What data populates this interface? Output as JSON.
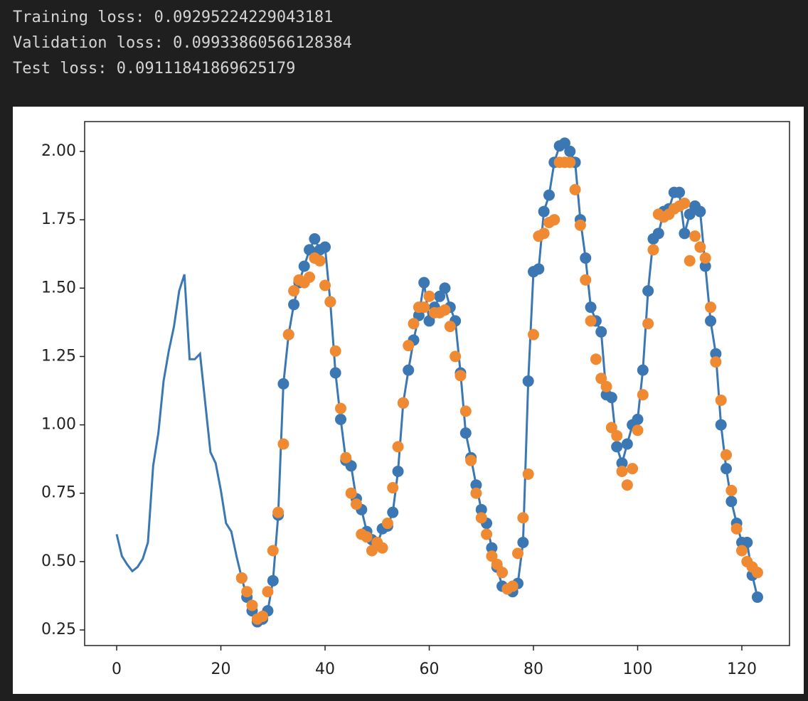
{
  "output_lines": [
    "Training loss: 0.09295224229043181",
    "Validation loss: 0.09933860566128384",
    "Test loss: 0.09111841869625179"
  ],
  "chart_data": {
    "type": "line",
    "x": [
      0,
      1,
      2,
      3,
      4,
      5,
      6,
      7,
      8,
      9,
      10,
      11,
      12,
      13,
      14,
      15,
      16,
      17,
      18,
      19,
      20,
      21,
      22,
      23,
      24,
      25,
      26,
      27,
      28,
      29,
      30,
      31,
      32,
      33,
      34,
      35,
      36,
      37,
      38,
      39,
      40,
      41,
      42,
      43,
      44,
      45,
      46,
      47,
      48,
      49,
      50,
      51,
      52,
      53,
      54,
      55,
      56,
      57,
      58,
      59,
      60,
      61,
      62,
      63,
      64,
      65,
      66,
      67,
      68,
      69,
      70,
      71,
      72,
      73,
      74,
      75,
      76,
      77,
      78,
      79,
      80,
      81,
      82,
      83,
      84,
      85,
      86,
      87,
      88,
      89,
      90,
      91,
      92,
      93,
      94,
      95,
      96,
      97,
      98,
      99,
      100,
      101,
      102,
      103,
      104,
      105,
      106,
      107,
      108,
      109,
      110,
      111,
      112,
      113,
      114,
      115,
      116,
      117,
      118,
      119,
      120,
      121,
      122,
      123
    ],
    "series": [
      {
        "style": "line",
        "color": "#3b77b3",
        "values": [
          0.6,
          0.52,
          0.49,
          0.465,
          0.48,
          0.51,
          0.57,
          0.85,
          0.97,
          1.16,
          1.27,
          1.36,
          1.49,
          1.55,
          1.24,
          1.24,
          1.26,
          1.08,
          0.9,
          0.86,
          0.76,
          0.64,
          0.61,
          0.52,
          0.44,
          0.37,
          0.32,
          0.28,
          0.29,
          0.32,
          0.43,
          0.67,
          1.15,
          1.33,
          1.44,
          1.52,
          1.58,
          1.64,
          1.68,
          1.64,
          1.65,
          1.45,
          1.19,
          1.02,
          0.87,
          0.85,
          0.73,
          0.69,
          0.61,
          0.58,
          0.56,
          0.62,
          0.63,
          0.68,
          0.83,
          1.08,
          1.2,
          1.31,
          1.4,
          1.52,
          1.38,
          1.43,
          1.47,
          1.5,
          1.43,
          1.38,
          1.19,
          0.97,
          0.88,
          0.78,
          0.69,
          0.64,
          0.55,
          0.48,
          0.41,
          0.4,
          0.39,
          0.42,
          0.57,
          1.16,
          1.56,
          1.57,
          1.78,
          1.84,
          1.96,
          2.02,
          2.03,
          2.0,
          1.96,
          1.75,
          1.61,
          1.43,
          1.38,
          1.34,
          1.11,
          1.1,
          0.92,
          0.86,
          0.93,
          1.0,
          1.02,
          1.2,
          1.49,
          1.68,
          1.7,
          1.78,
          1.79,
          1.85,
          1.85,
          1.7,
          1.77,
          1.8,
          1.78,
          1.58,
          1.38,
          1.26,
          1.0,
          0.84,
          0.72,
          0.64,
          0.57,
          0.57,
          0.45,
          0.37
        ]
      },
      {
        "style": "scatter",
        "color": "#3b77b3",
        "values": [
          null,
          null,
          null,
          null,
          null,
          null,
          null,
          null,
          null,
          null,
          null,
          null,
          null,
          null,
          null,
          null,
          null,
          null,
          null,
          null,
          null,
          null,
          null,
          null,
          0.44,
          0.37,
          0.32,
          0.28,
          0.29,
          0.32,
          0.43,
          0.67,
          1.15,
          1.33,
          1.44,
          1.52,
          1.58,
          1.64,
          1.68,
          1.64,
          1.65,
          1.45,
          1.19,
          1.02,
          0.87,
          0.85,
          0.73,
          0.69,
          0.61,
          0.58,
          0.56,
          0.62,
          0.63,
          0.68,
          0.83,
          1.08,
          1.2,
          1.31,
          1.4,
          1.52,
          1.38,
          1.43,
          1.47,
          1.5,
          1.43,
          1.38,
          1.19,
          0.97,
          0.88,
          0.78,
          0.69,
          0.64,
          0.55,
          0.48,
          0.41,
          0.4,
          0.39,
          0.42,
          0.57,
          1.16,
          1.56,
          1.57,
          1.78,
          1.84,
          1.96,
          2.02,
          2.03,
          2.0,
          1.96,
          1.75,
          1.61,
          1.43,
          1.38,
          1.34,
          1.11,
          1.1,
          0.92,
          0.86,
          0.93,
          1.0,
          1.02,
          1.2,
          1.49,
          1.68,
          1.7,
          1.78,
          1.79,
          1.85,
          1.85,
          1.7,
          1.77,
          1.8,
          1.78,
          1.58,
          1.38,
          1.26,
          1.0,
          0.84,
          0.72,
          0.64,
          0.57,
          0.57,
          0.45,
          0.37
        ]
      },
      {
        "style": "scatter",
        "color": "#ef8a32",
        "values": [
          null,
          null,
          null,
          null,
          null,
          null,
          null,
          null,
          null,
          null,
          null,
          null,
          null,
          null,
          null,
          null,
          null,
          null,
          null,
          null,
          null,
          null,
          null,
          null,
          0.44,
          0.39,
          0.34,
          0.29,
          0.3,
          0.39,
          0.54,
          0.68,
          0.93,
          1.33,
          1.49,
          1.53,
          1.52,
          1.54,
          1.61,
          1.6,
          1.51,
          1.45,
          1.27,
          1.06,
          0.88,
          0.75,
          0.71,
          0.6,
          0.59,
          0.54,
          0.57,
          0.55,
          0.64,
          0.77,
          0.92,
          1.08,
          1.29,
          1.37,
          1.43,
          1.43,
          1.47,
          1.41,
          1.41,
          1.42,
          1.36,
          1.25,
          1.18,
          1.05,
          0.87,
          0.75,
          0.66,
          0.6,
          0.52,
          0.49,
          0.46,
          0.4,
          0.41,
          0.53,
          0.66,
          0.82,
          1.33,
          1.69,
          1.7,
          1.74,
          1.75,
          1.96,
          1.96,
          1.96,
          1.86,
          1.73,
          1.53,
          1.38,
          1.24,
          1.17,
          1.14,
          0.99,
          0.96,
          0.83,
          0.78,
          0.84,
          0.98,
          1.11,
          1.37,
          1.64,
          1.77,
          1.76,
          1.77,
          1.79,
          1.8,
          1.81,
          1.6,
          1.69,
          1.65,
          1.61,
          1.43,
          1.23,
          1.09,
          0.89,
          0.76,
          0.62,
          0.54,
          0.5,
          0.48,
          0.46
        ]
      }
    ],
    "xlim": [
      -6.15,
      129.15
    ],
    "xticks": [
      0,
      20,
      40,
      60,
      80,
      100,
      120
    ],
    "ylim": [
      0.193,
      2.109
    ],
    "yticks": [
      0.25,
      {
        "value": 0.5,
        "label": "0.50"
      },
      0.75,
      {
        "value": 1,
        "label": "1.00"
      },
      1.25,
      {
        "value": 1.5,
        "label": "1.50"
      },
      1.75,
      {
        "value": 2,
        "label": "2.00"
      }
    ]
  }
}
